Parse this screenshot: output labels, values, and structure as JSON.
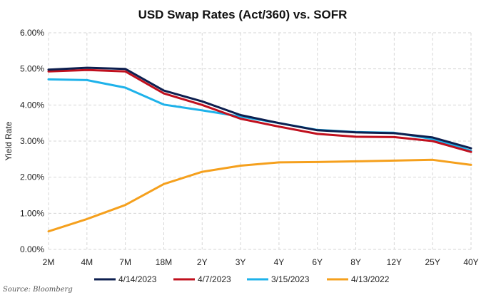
{
  "chart_data": {
    "type": "line",
    "title": "USD Swap Rates (Act/360) vs. SOFR",
    "xlabel": "",
    "ylabel": "Yield Rate",
    "categories": [
      "2M",
      "4M",
      "7M",
      "18M",
      "2Y",
      "3Y",
      "4Y",
      "6Y",
      "8Y",
      "12Y",
      "25Y",
      "40Y"
    ],
    "ylim": [
      0,
      6
    ],
    "yticks": [
      "0.00%",
      "1.00%",
      "2.00%",
      "3.00%",
      "4.00%",
      "5.00%",
      "6.00%"
    ],
    "grid": true,
    "legend_position": "bottom",
    "series": [
      {
        "name": "4/14/2023",
        "color": "#0d1f4f",
        "values": [
          4.98,
          5.03,
          5.0,
          4.4,
          4.1,
          3.72,
          3.5,
          3.3,
          3.24,
          3.22,
          3.1,
          2.8
        ]
      },
      {
        "name": "4/7/2023",
        "color": "#c0101e",
        "values": [
          4.93,
          4.97,
          4.93,
          4.32,
          4.0,
          3.62,
          3.4,
          3.2,
          3.12,
          3.11,
          3.0,
          2.7
        ]
      },
      {
        "name": "3/15/2023",
        "color": "#1eb2ea",
        "values": [
          4.71,
          4.69,
          4.48,
          4.01,
          3.85,
          3.68,
          3.5,
          3.31,
          3.25,
          3.23,
          3.06,
          2.73
        ]
      },
      {
        "name": "4/13/2022",
        "color": "#f5a01d",
        "values": [
          0.5,
          0.84,
          1.23,
          1.81,
          2.15,
          2.32,
          2.41,
          2.42,
          2.44,
          2.46,
          2.48,
          2.34
        ]
      }
    ]
  },
  "source": "Source: Bloomberg"
}
